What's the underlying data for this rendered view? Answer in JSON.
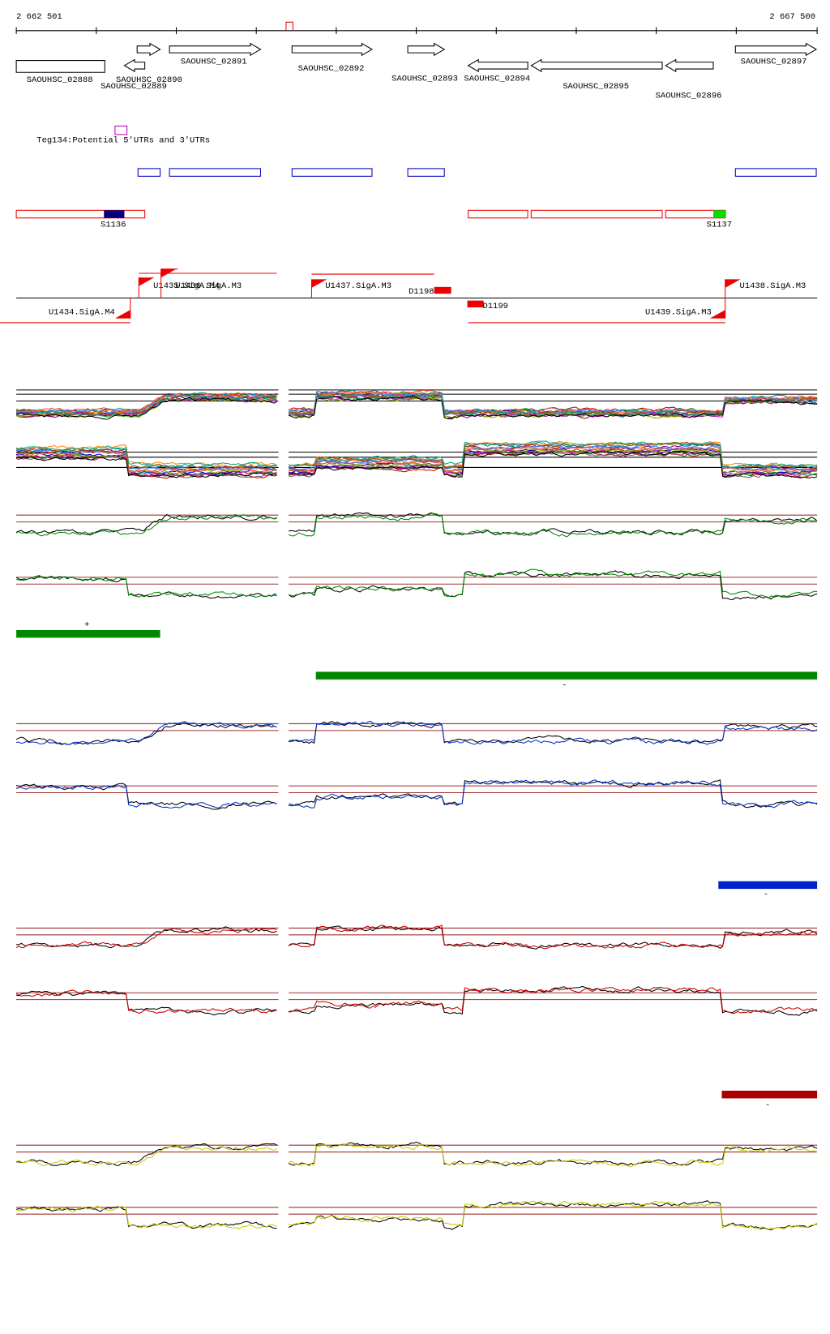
{
  "ruler": {
    "start": "2 662 501",
    "end": "2 667 500"
  },
  "genes": [
    "SAOUHSC_02888",
    "SAOUHSC_02889",
    "SAOUHSC_02890",
    "SAOUHSC_02891",
    "SAOUHSC_02892",
    "SAOUHSC_02893",
    "SAOUHSC_02894",
    "SAOUHSC_02895",
    "SAOUHSC_02896",
    "SAOUHSC_02897"
  ],
  "utr_label": "Teg134:Potential 5'UTRs and 3'UTRs",
  "segments": [
    "S1136",
    "S1137"
  ],
  "promoters": [
    "U1434.SigA.M4",
    "U1435.SigA.M4",
    "U1436.SigA.M3",
    "U1437.SigA.M3",
    "U1438.SigA.M3",
    "U1439.SigA.M3"
  ],
  "terminators": [
    "D1198",
    "D1199"
  ],
  "strand_marks": [
    "+",
    "-",
    "-",
    "-"
  ]
}
